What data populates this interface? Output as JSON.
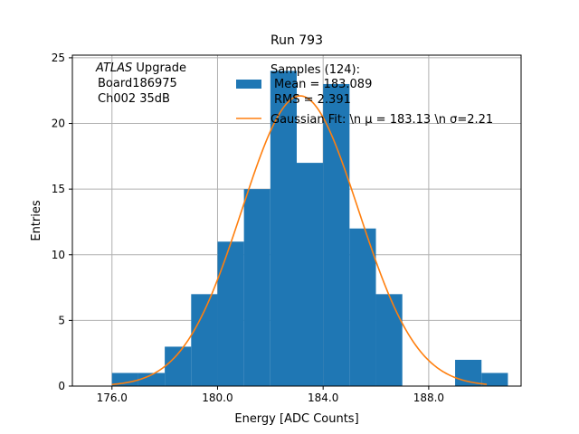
{
  "chart_data": {
    "type": "bar",
    "title": "Run 793",
    "xlabel": "Energy [ADC Counts]",
    "ylabel": "Entries",
    "xlim": [
      174.5,
      191.5
    ],
    "ylim": [
      0,
      25.2
    ],
    "xticks": [
      176.0,
      180.0,
      184.0,
      188.0
    ],
    "xtick_labels": [
      "176.0",
      "180.0",
      "184.0",
      "188.0"
    ],
    "yticks": [
      0,
      5,
      10,
      15,
      20,
      25
    ],
    "ytick_labels": [
      "0",
      "5",
      "10",
      "15",
      "20",
      "25"
    ],
    "grid": true,
    "colors": {
      "histogram": "#1f77b4",
      "fit": "#ff7f0e"
    },
    "histogram": {
      "bin_edges": [
        176,
        177,
        178,
        179,
        180,
        181,
        182,
        183,
        184,
        185,
        186,
        187,
        188,
        189,
        190,
        191
      ],
      "counts": [
        1,
        1,
        3,
        7,
        11,
        15,
        24,
        17,
        23,
        12,
        7,
        0,
        0,
        2,
        1
      ]
    },
    "fit": {
      "mu": 183.13,
      "sigma": 2.21,
      "amplitude": 22.1,
      "x_range": [
        176,
        190.2
      ]
    },
    "annotation_lines": [
      "ATLAS Upgrade",
      "Board186975",
      "Ch002 35dB"
    ],
    "legend": {
      "position": "top-right",
      "entries": [
        {
          "type": "patch",
          "lines": [
            "Samples (124):",
            "Mean = 183.089",
            "RMS = 2.391"
          ]
        },
        {
          "type": "line",
          "text": "Gaussian Fit: \\n μ = 183.13 \\n σ=2.21"
        }
      ]
    }
  }
}
